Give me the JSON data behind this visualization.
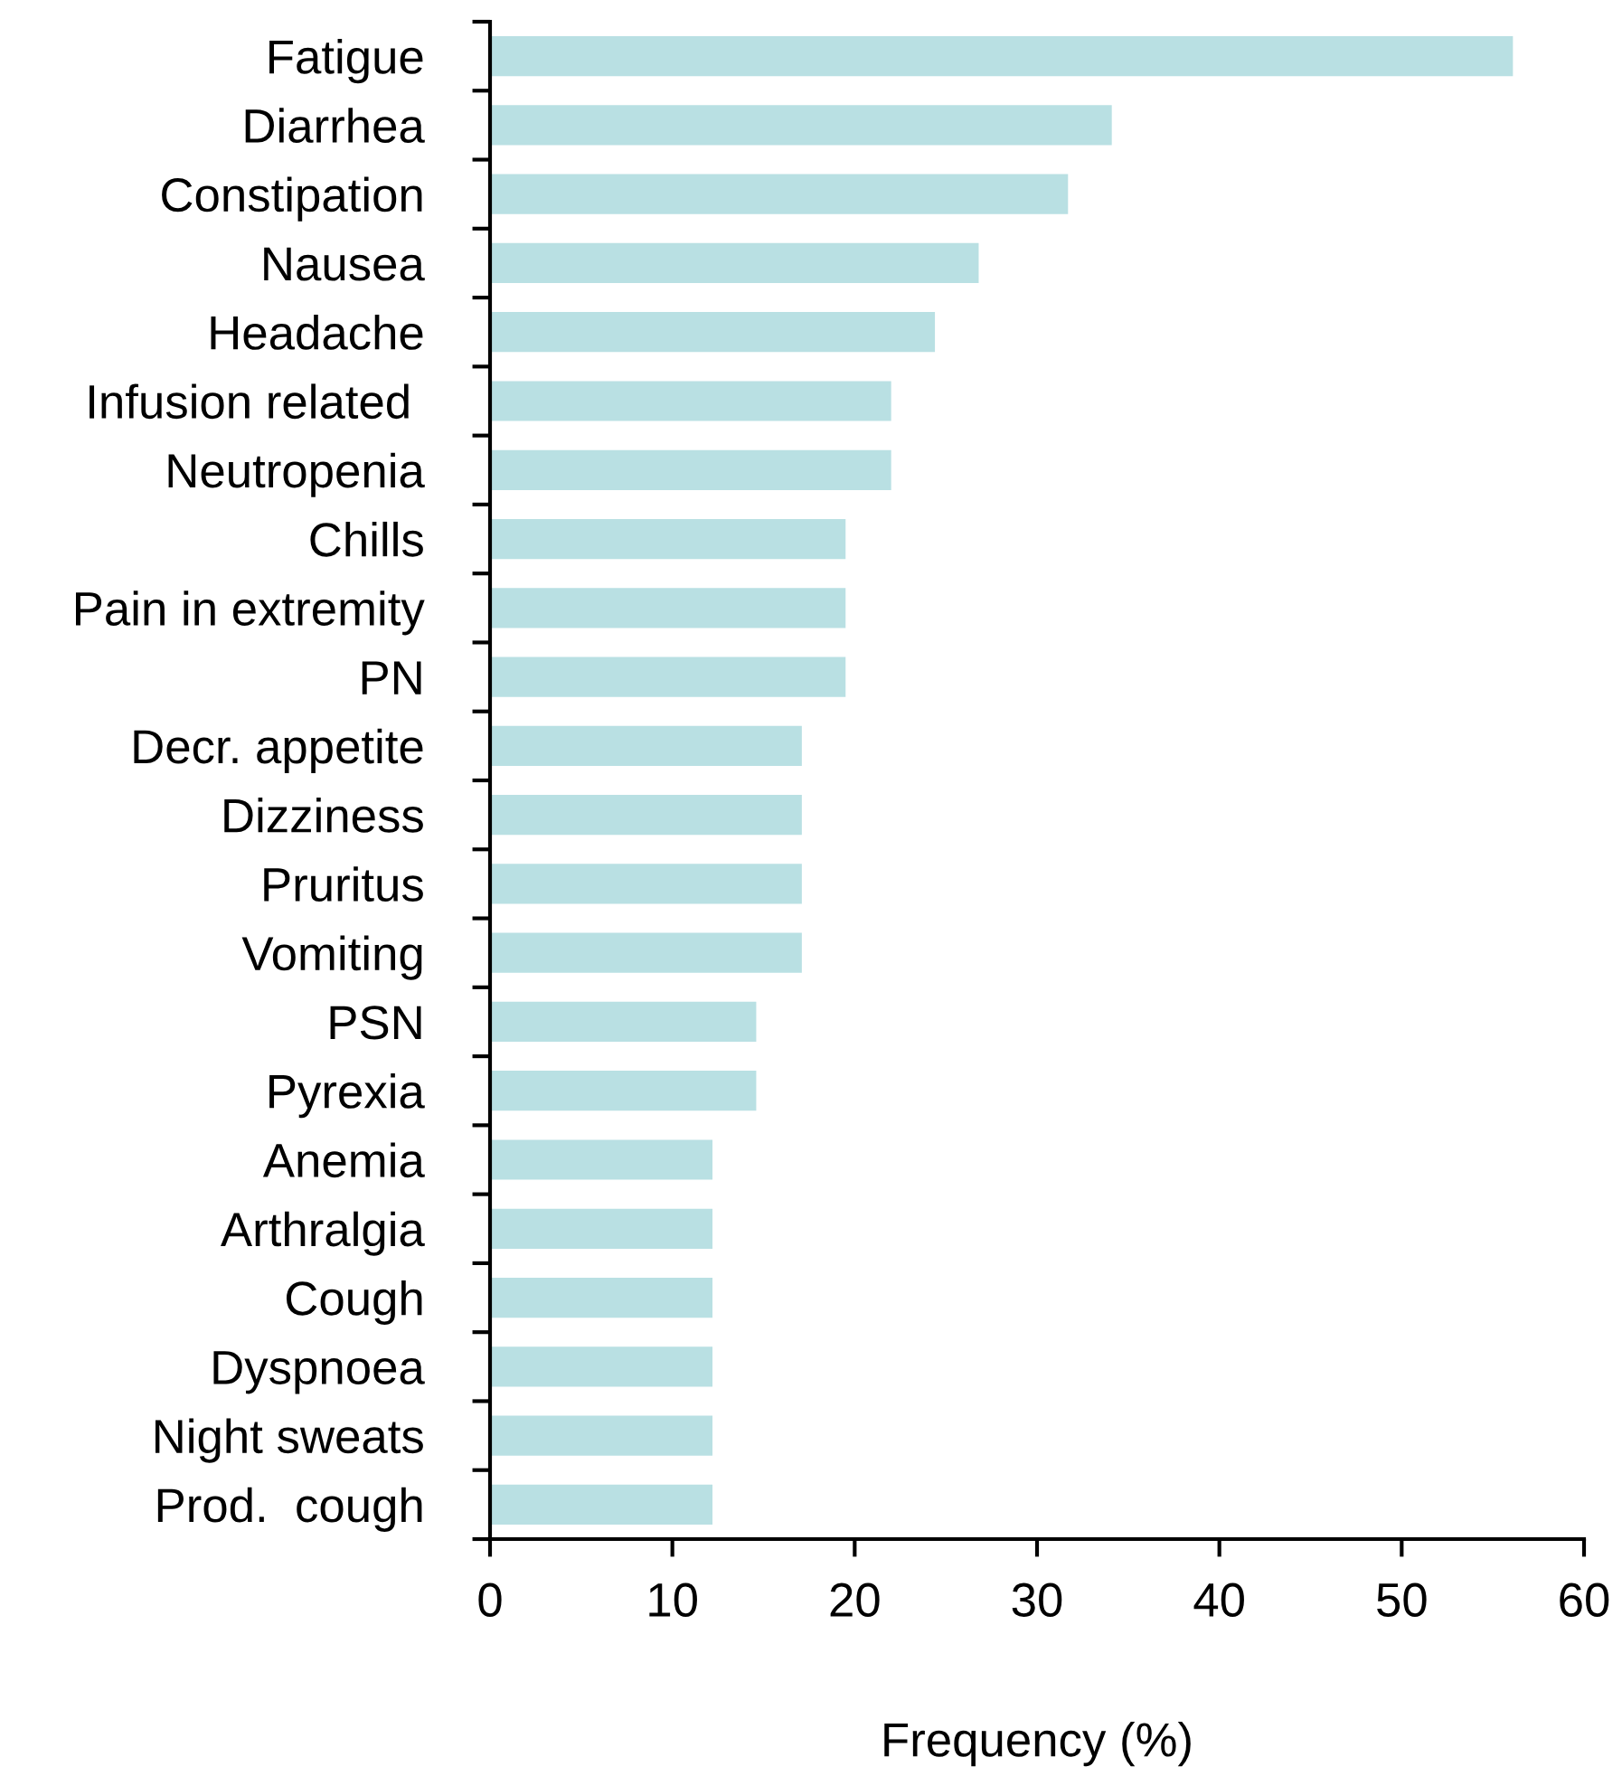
{
  "chart_data": {
    "type": "bar",
    "orientation": "horizontal",
    "categories": [
      "Fatigue",
      "Diarrhea",
      "Constipation",
      "Nausea",
      "Headache",
      "Infusion related ",
      "Neutropenia",
      "Chills",
      "Pain in extremity",
      "PN",
      "Decr. appetite",
      "Dizziness",
      "Pruritus",
      "Vomiting",
      "PSN",
      "Pyrexia",
      "Anemia",
      "Arthralgia",
      "Cough",
      "Dyspnoea",
      "Night sweats",
      "Prod.  cough"
    ],
    "values": [
      56.1,
      34.1,
      31.7,
      26.8,
      24.4,
      22.0,
      22.0,
      19.5,
      19.5,
      19.5,
      17.1,
      17.1,
      17.1,
      17.1,
      14.6,
      14.6,
      12.2,
      12.2,
      12.2,
      12.2,
      12.2,
      12.2
    ],
    "color": "#b9e0e3",
    "xlabel": "Frequency (%)",
    "xlim": [
      0,
      60
    ],
    "xticks": [
      0,
      10,
      20,
      30,
      40,
      50,
      60
    ],
    "grid": false
  }
}
